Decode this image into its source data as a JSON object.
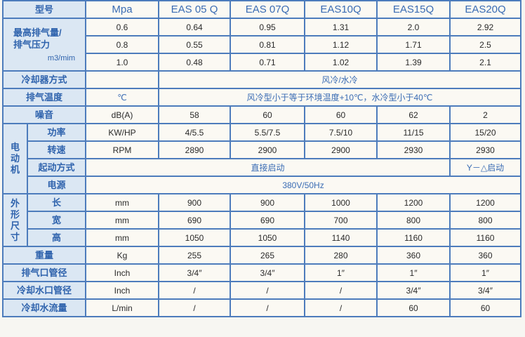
{
  "header": {
    "label": "型号",
    "unit": "Mpa",
    "models": [
      "EAS 05 Q",
      "EAS 07Q",
      "EAS10Q",
      "EAS15Q",
      "EAS20Q"
    ]
  },
  "flow": {
    "label": "最高排气量/排气压力",
    "unit": "m3/mim",
    "rows": [
      {
        "pressure": "0.6",
        "values": [
          "0.64",
          "0.95",
          "1.31",
          "2.0",
          "2.92"
        ]
      },
      {
        "pressure": "0.8",
        "values": [
          "0.55",
          "0.81",
          "1.12",
          "1.71",
          "2.5"
        ]
      },
      {
        "pressure": "1.0",
        "values": [
          "0.48",
          "0.71",
          "1.02",
          "1.39",
          "2.1"
        ]
      }
    ]
  },
  "cooling": {
    "label": "冷却器方式",
    "value": "风冷/水冷"
  },
  "exhaust_temp": {
    "label": "排气温度",
    "unit": "℃",
    "value": "风冷型小于等于环境温度+10℃，水冷型小于40℃"
  },
  "noise": {
    "label": "噪音",
    "unit": "dB(A)",
    "values": [
      "58",
      "60",
      "60",
      "62",
      "2"
    ]
  },
  "motor": {
    "label": "电动机",
    "power": {
      "label": "功率",
      "unit": "KW/HP",
      "values": [
        "4/5.5",
        "5.5/7.5",
        "7.5/10",
        "11/15",
        "15/20"
      ]
    },
    "speed": {
      "label": "转速",
      "unit": "RPM",
      "values": [
        "2890",
        "2900",
        "2900",
        "2930",
        "2930"
      ]
    },
    "start": {
      "label": "起动方式",
      "value": "直接启动",
      "value_last": "Y－△启动"
    },
    "power_supply": {
      "label": "电源",
      "value": "380V/50Hz"
    }
  },
  "dimensions": {
    "label": "外形尺寸",
    "length": {
      "label": "长",
      "unit": "mm",
      "values": [
        "900",
        "900",
        "1000",
        "1200",
        "1200"
      ]
    },
    "width": {
      "label": "宽",
      "unit": "mm",
      "values": [
        "690",
        "690",
        "700",
        "800",
        "800"
      ]
    },
    "height": {
      "label": "高",
      "unit": "mm",
      "values": [
        "1050",
        "1050",
        "1140",
        "1160",
        "1160"
      ]
    }
  },
  "weight": {
    "label": "重量",
    "unit": "Kg",
    "values": [
      "255",
      "265",
      "280",
      "360",
      "360"
    ]
  },
  "outlet": {
    "label": "排气口管径",
    "unit": "Inch",
    "values": [
      "3/4″",
      "3/4″",
      "1″",
      "1″",
      "1″"
    ]
  },
  "water_pipe": {
    "label": "冷却水口管径",
    "unit": "Inch",
    "values": [
      "/",
      "/",
      "/",
      "3/4″",
      "3/4″"
    ]
  },
  "water_flow": {
    "label": "冷却水流量",
    "unit": "L/min",
    "values": [
      "/",
      "/",
      "/",
      "60",
      "60"
    ]
  },
  "colors": {
    "border": "#4d7cbc",
    "label_bg": "#dbe7f3",
    "label_text": "#2f63ad",
    "cell_bg": "#fbf9f3"
  }
}
